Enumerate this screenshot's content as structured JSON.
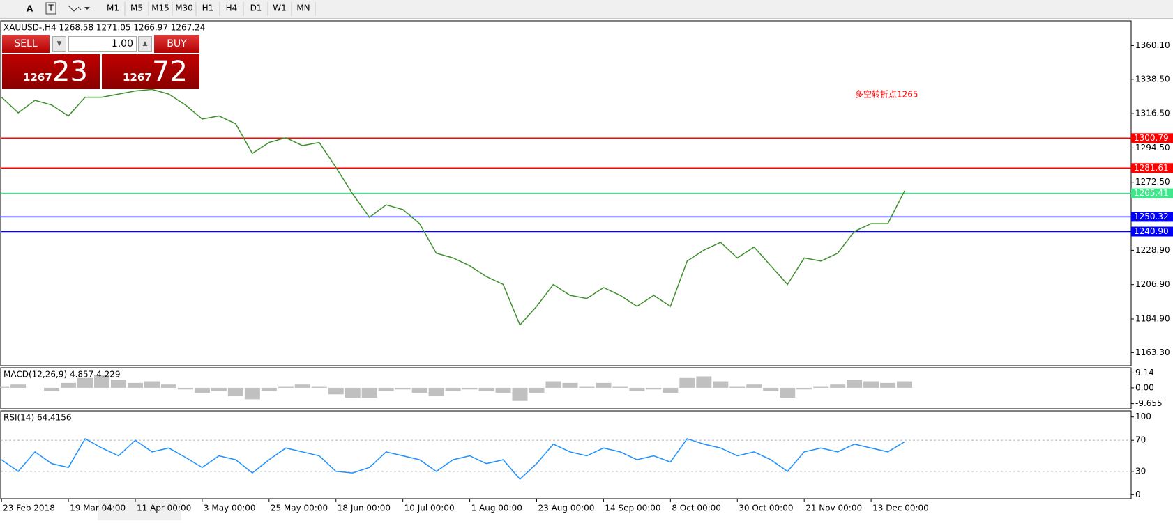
{
  "toolbar": {
    "tools": [
      "A"
    ],
    "timeframes": [
      "M1",
      "M5",
      "M15",
      "M30",
      "H1",
      "H4",
      "D1",
      "W1",
      "MN"
    ]
  },
  "trade_panel": {
    "sell": "SELL",
    "buy": "BUY",
    "lot": "1.00",
    "bid_big": "1267",
    "bid_small": "23",
    "ask_big": "1267",
    "ask_small": "72"
  },
  "chart_data": [
    {
      "type": "line",
      "title": "XAUUSD-,H4  1268.58 1271.05 1266.97 1267.24",
      "annotation": "多空转折点1265",
      "color": "#3f8f2f",
      "categories": [
        "23 Feb 2018",
        null,
        null,
        null,
        "19 Mar 04:00",
        null,
        null,
        null,
        "11 Apr 00:00",
        null,
        null,
        null,
        "3 May 00:00",
        null,
        null,
        null,
        "25 May 00:00",
        null,
        null,
        null,
        "18 Jun 00:00",
        null,
        null,
        null,
        "10 Jul 00:00",
        null,
        null,
        null,
        "1 Aug 00:00",
        null,
        null,
        null,
        "23 Aug 00:00",
        null,
        null,
        null,
        "14 Sep 00:00",
        null,
        null,
        null,
        "8 Oct 00:00",
        null,
        null,
        null,
        "30 Oct 00:00",
        null,
        null,
        null,
        "21 Nov 00:00",
        null,
        null,
        null,
        "13 Dec 00:00",
        null,
        null
      ],
      "values": [
        1327,
        1317,
        1325,
        1322,
        1315,
        1327,
        1327,
        1329,
        1331,
        1332,
        1329,
        1322,
        1313,
        1315,
        1310,
        1291,
        1298,
        1301,
        1296,
        1298,
        1282,
        1265,
        1250,
        1258,
        1255,
        1246,
        1227,
        1224,
        1219,
        1212,
        1207,
        1181,
        1193,
        1207,
        1200,
        1198,
        1205,
        1200,
        1193,
        1200,
        1193,
        1222,
        1229,
        1234,
        1224,
        1231,
        1219,
        1207,
        1224,
        1222,
        1227,
        1241,
        1246,
        1246,
        1267
      ],
      "ylim": [
        1155.0,
        1375.9
      ],
      "yticks": [
        {
          "value": 1360.1,
          "label": "1360.10"
        },
        {
          "value": 1338.5,
          "label": "1338.50"
        },
        {
          "value": 1316.5,
          "label": "1316.50"
        },
        {
          "value": 1294.5,
          "label": "1294.50"
        },
        {
          "value": 1272.5,
          "label": "1272.50"
        },
        {
          "value": 1228.9,
          "label": "1228.90"
        },
        {
          "value": 1206.9,
          "label": "1206.90"
        },
        {
          "value": 1184.9,
          "label": "1184.90"
        },
        {
          "value": 1163.3,
          "label": "1163.30"
        }
      ],
      "levels": [
        {
          "value": 1300.79,
          "color": "#ff0000"
        },
        {
          "value": 1281.61,
          "color": "#ff0000"
        },
        {
          "value": 1265.41,
          "color": "#3ee88a"
        },
        {
          "value": 1250.32,
          "color": "#0000ff"
        },
        {
          "value": 1240.9,
          "label": "1240.90",
          "color": "#0000ff"
        }
      ]
    },
    {
      "type": "bar",
      "title": "MACD(12,26,9) 4.857 4.229",
      "color": "#c0c0c0",
      "values": [
        1,
        2,
        0,
        -2,
        3,
        6,
        8,
        5,
        3,
        4,
        2,
        -1,
        -3,
        -2,
        -5,
        -7,
        -2,
        1,
        2,
        1,
        -4,
        -6,
        -6,
        -2,
        -1,
        -3,
        -5,
        -2,
        -1,
        -2,
        -3,
        -8,
        -3,
        4,
        3,
        1,
        3,
        1,
        -2,
        -1,
        -3,
        6,
        7,
        4,
        1,
        2,
        -2,
        -6,
        -1,
        1,
        2,
        5,
        4,
        3,
        4
      ],
      "ylim": [
        -12.8,
        12.3
      ],
      "yticks": [
        9.14,
        {
          "value": 0,
          "label": "0.00"
        },
        -9.655
      ]
    },
    {
      "type": "line",
      "title": "RSI(14) 64.4156",
      "color": "#1e90ff",
      "values": [
        45,
        30,
        55,
        40,
        35,
        72,
        60,
        50,
        70,
        55,
        60,
        48,
        35,
        50,
        45,
        28,
        45,
        60,
        55,
        50,
        30,
        28,
        35,
        55,
        50,
        45,
        30,
        45,
        50,
        40,
        45,
        20,
        40,
        65,
        55,
        50,
        60,
        55,
        45,
        50,
        42,
        72,
        65,
        60,
        50,
        55,
        45,
        30,
        55,
        60,
        55,
        65,
        60,
        55,
        68
      ],
      "ylim": [
        -5.1,
        107.8
      ],
      "yticks": [
        100,
        70,
        30,
        0
      ],
      "levels": [
        {
          "value": 70,
          "color": "#b0b0b0"
        },
        {
          "value": 30,
          "color": "#b0b0b0"
        }
      ]
    }
  ]
}
